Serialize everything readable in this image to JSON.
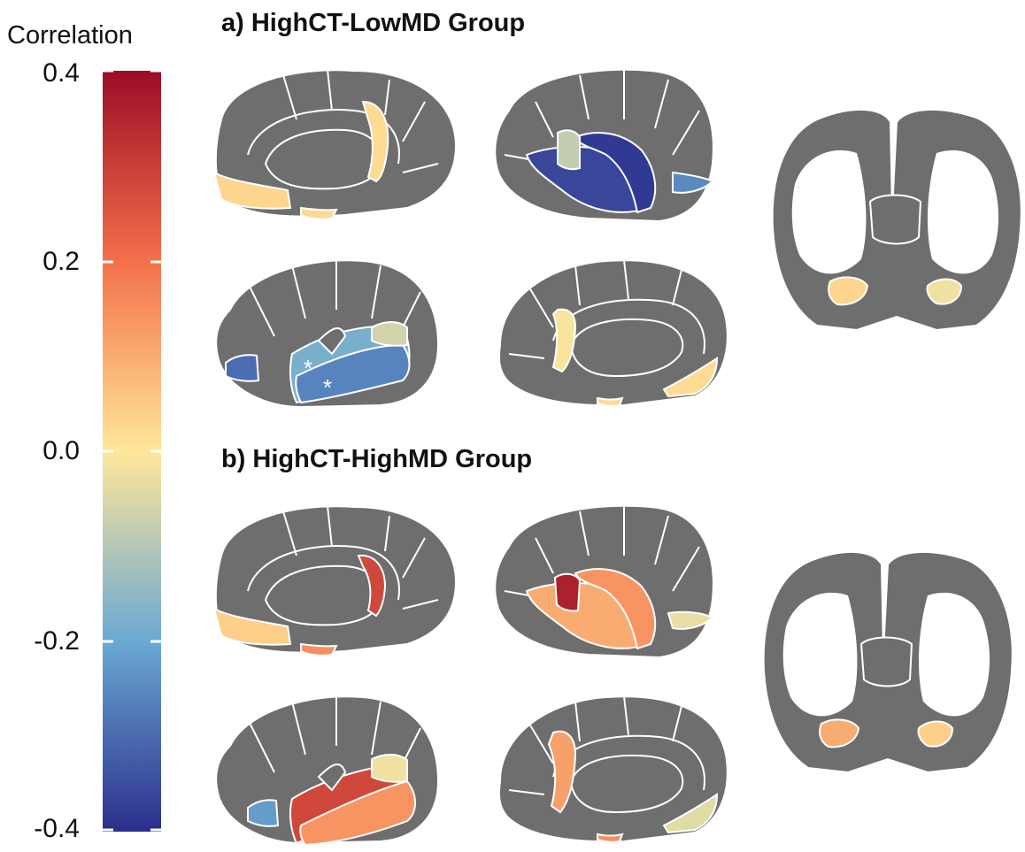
{
  "colorbar": {
    "title": "Correlation",
    "ticks": [
      "0.4",
      "0.2",
      "0.0",
      "-0.2",
      "-0.4"
    ],
    "range": [
      -0.4,
      0.4
    ],
    "colors": {
      "low": "#2b2e8c",
      "mid_low": "#6aa9d3",
      "mid": "#ffe79a",
      "mid_high": "#f3704a",
      "high": "#9b0d26"
    }
  },
  "panels": [
    {
      "title": "a) HighCT-LowMD Group",
      "annotation": "*",
      "regions": {
        "isthmus_cingulate": 0.02,
        "medial_orbitofrontal": 0.03,
        "entorhinal": 0.02,
        "transverse_temporal": -0.08,
        "superior_temporal": -0.18,
        "middle_temporal": -0.26,
        "lateral_occipital": -0.3,
        "pericalcarine": -0.25,
        "supramarginal_insula": -0.06,
        "superior_temporal_right": -0.36,
        "middle_temporal_right": -0.38,
        "isthmus_cingulate_right": -0.01,
        "orbitofrontal_right": 0.02,
        "amygdala_left": 0.03,
        "amygdala_right": -0.02
      }
    },
    {
      "title": "b) HighCT-HighMD Group",
      "regions": {
        "isthmus_cingulate": 0.28,
        "medial_orbitofrontal": 0.04,
        "entorhinal": 0.15,
        "transverse_temporal": 0.36,
        "superior_temporal": 0.1,
        "middle_temporal": 0.04,
        "lateral_occipital": -0.03,
        "pericalcarine": -0.22,
        "supramarginal_insula": -0.02,
        "superior_temporal_right": 0.28,
        "middle_temporal_right": 0.14,
        "isthmus_cingulate_right": 0.12,
        "orbitofrontal_right": -0.04,
        "amygdala_left": 0.1,
        "amygdala_right": 0.04
      }
    }
  ],
  "style": {
    "brain_gray": "#6e6e6e",
    "outline": "#ffffff"
  }
}
